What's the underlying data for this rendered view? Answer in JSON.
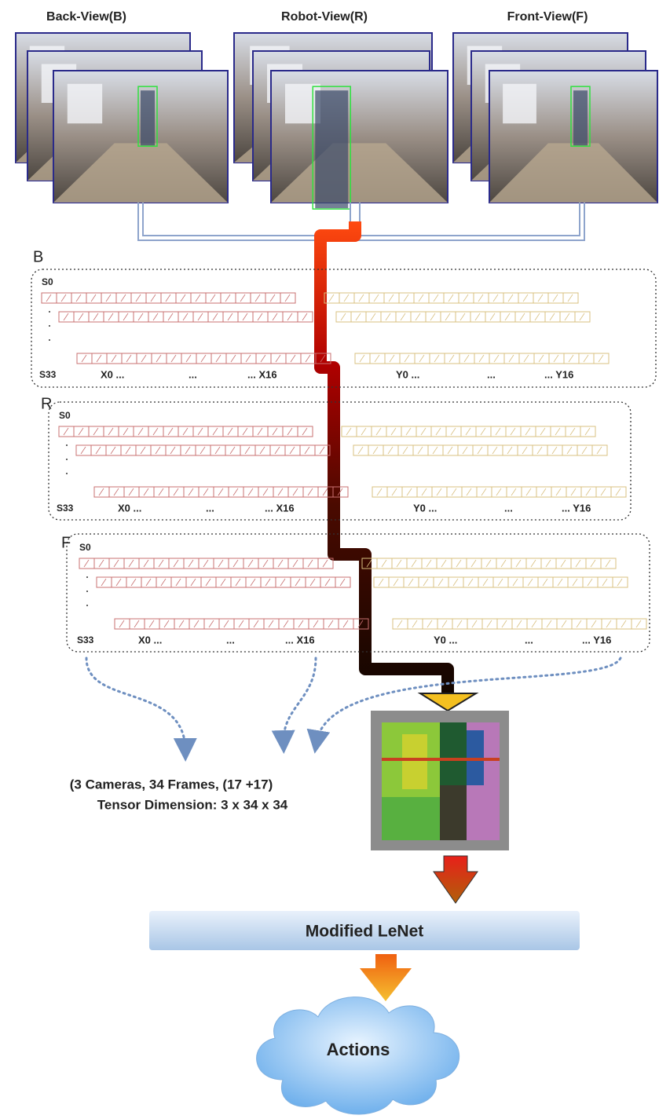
{
  "views": [
    {
      "label": "Back-View(B)"
    },
    {
      "label": "Robot-View(R)"
    },
    {
      "label": "Front-View(F)"
    }
  ],
  "panels": [
    {
      "label": "B",
      "first_row": "S0",
      "last_row": "S33",
      "x_labels": [
        "X0 ...",
        "...",
        "... X16"
      ],
      "y_labels": [
        "Y0 ...",
        "...",
        "... Y16"
      ]
    },
    {
      "label": "R",
      "first_row": "S0",
      "last_row": "S33",
      "x_labels": [
        "X0 ...",
        "...",
        "... X16"
      ],
      "y_labels": [
        "Y0 ...",
        "...",
        "... Y16"
      ]
    },
    {
      "label": "F",
      "first_row": "S0",
      "last_row": "S33",
      "x_labels": [
        "X0 ...",
        "...",
        "... X16"
      ],
      "y_labels": [
        "Y0 ...",
        "...",
        "... Y16"
      ]
    }
  ],
  "caption": {
    "line1": "(3 Cameras,  34 Frames, (17 +17)",
    "line2": "Tensor Dimension:  3 x 34 x 34"
  },
  "model": {
    "label": "Modified LeNet"
  },
  "output": {
    "label": "Actions"
  }
}
